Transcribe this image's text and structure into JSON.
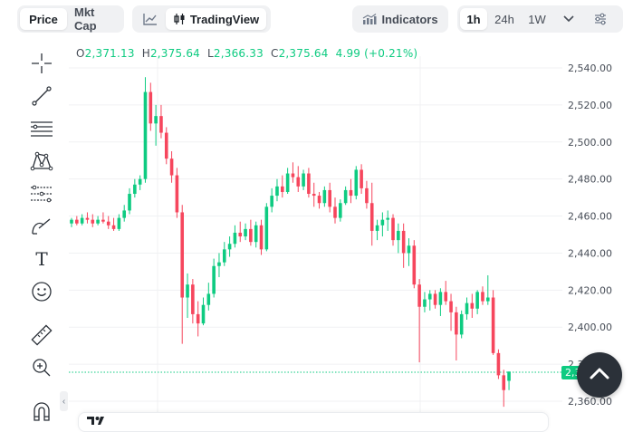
{
  "toolbar": {
    "price_tab": "Price",
    "mktcap_tab": "Mkt Cap",
    "tradingview_label": "TradingView",
    "indicators_label": "Indicators",
    "intervals": [
      "1h",
      "24h",
      "1W"
    ],
    "active_interval": "1h"
  },
  "ohlc": {
    "o_label": "O",
    "o_value": "2,371.13",
    "h_label": "H",
    "h_value": "2,375.64",
    "l_label": "L",
    "l_value": "2,366.33",
    "c_label": "C",
    "c_value": "2,375.64",
    "change": "4.99 (+0.21%)"
  },
  "tools": [
    "crosshair-icon",
    "trendline-icon",
    "horizontal-lines-icon",
    "pattern-icon",
    "fib-icon",
    "brush-icon",
    "text-icon",
    "emoji-icon",
    "ruler-icon",
    "zoom-icon",
    "magnet-icon"
  ],
  "text_tool_glyph": "T",
  "colors": {
    "up": "#0ecb81",
    "down": "#f6465d",
    "grid": "#f0f1f3",
    "axis_text": "#474d57",
    "accent_dark": "#2b3139"
  },
  "current_price_tag": "2,375.64",
  "chart_data": {
    "type": "candlestick",
    "y_ticks": [
      "2,540.00",
      "2,520.00",
      "2,500.00",
      "2,480.00",
      "2,460.00",
      "2,440.00",
      "2,420.00",
      "2,400.00",
      "2,380.00",
      "2,360.00"
    ],
    "ylim": [
      2357,
      2542
    ],
    "current_price": 2375.64,
    "ohlc": [
      [
        2456,
        2459,
        2454,
        2458
      ],
      [
        2458,
        2460,
        2455,
        2456
      ],
      [
        2456,
        2461,
        2455,
        2459
      ],
      [
        2459,
        2462,
        2456,
        2458
      ],
      [
        2458,
        2461,
        2454,
        2456
      ],
      [
        2456,
        2460,
        2455,
        2458
      ],
      [
        2458,
        2462,
        2456,
        2457
      ],
      [
        2457,
        2460,
        2453,
        2455
      ],
      [
        2455,
        2459,
        2452,
        2453
      ],
      [
        2453,
        2461,
        2452,
        2459
      ],
      [
        2459,
        2466,
        2457,
        2463
      ],
      [
        2463,
        2475,
        2461,
        2472
      ],
      [
        2472,
        2480,
        2470,
        2477
      ],
      [
        2477,
        2482,
        2474,
        2480
      ],
      [
        2480,
        2535,
        2478,
        2527
      ],
      [
        2527,
        2532,
        2506,
        2510
      ],
      [
        2510,
        2520,
        2498,
        2514
      ],
      [
        2514,
        2520,
        2502,
        2505
      ],
      [
        2505,
        2508,
        2488,
        2491
      ],
      [
        2491,
        2495,
        2478,
        2482
      ],
      [
        2482,
        2486,
        2459,
        2462
      ],
      [
        2462,
        2466,
        2391,
        2416
      ],
      [
        2416,
        2429,
        2405,
        2423
      ],
      [
        2423,
        2426,
        2402,
        2407
      ],
      [
        2407,
        2414,
        2395,
        2402
      ],
      [
        2402,
        2416,
        2401,
        2412
      ],
      [
        2412,
        2424,
        2409,
        2418
      ],
      [
        2418,
        2437,
        2416,
        2433
      ],
      [
        2433,
        2440,
        2427,
        2435
      ],
      [
        2435,
        2446,
        2433,
        2442
      ],
      [
        2442,
        2449,
        2438,
        2445
      ],
      [
        2445,
        2455,
        2443,
        2451
      ],
      [
        2451,
        2457,
        2446,
        2449
      ],
      [
        2449,
        2456,
        2447,
        2453
      ],
      [
        2453,
        2458,
        2444,
        2446
      ],
      [
        2446,
        2457,
        2443,
        2455
      ],
      [
        2455,
        2458,
        2439,
        2442
      ],
      [
        2442,
        2467,
        2441,
        2465
      ],
      [
        2465,
        2475,
        2462,
        2471
      ],
      [
        2471,
        2480,
        2468,
        2476
      ],
      [
        2476,
        2482,
        2470,
        2473
      ],
      [
        2473,
        2486,
        2472,
        2483
      ],
      [
        2483,
        2489,
        2478,
        2481
      ],
      [
        2481,
        2487,
        2473,
        2476
      ],
      [
        2476,
        2485,
        2474,
        2483
      ],
      [
        2483,
        2486,
        2470,
        2472
      ],
      [
        2472,
        2478,
        2465,
        2471
      ],
      [
        2471,
        2473,
        2464,
        2467
      ],
      [
        2467,
        2476,
        2465,
        2474
      ],
      [
        2474,
        2478,
        2462,
        2465
      ],
      [
        2465,
        2470,
        2456,
        2459
      ],
      [
        2459,
        2469,
        2457,
        2467
      ],
      [
        2467,
        2476,
        2466,
        2474
      ],
      [
        2474,
        2480,
        2467,
        2471
      ],
      [
        2471,
        2487,
        2469,
        2485
      ],
      [
        2485,
        2488,
        2472,
        2475
      ],
      [
        2475,
        2479,
        2464,
        2467
      ],
      [
        2467,
        2478,
        2444,
        2452
      ],
      [
        2452,
        2458,
        2447,
        2455
      ],
      [
        2455,
        2462,
        2449,
        2458
      ],
      [
        2458,
        2463,
        2452,
        2459
      ],
      [
        2459,
        2461,
        2444,
        2447
      ],
      [
        2447,
        2456,
        2440,
        2452
      ],
      [
        2452,
        2456,
        2432,
        2440
      ],
      [
        2440,
        2448,
        2433,
        2444
      ],
      [
        2444,
        2447,
        2421,
        2423
      ],
      [
        2423,
        2426,
        2381,
        2411
      ],
      [
        2411,
        2419,
        2408,
        2415
      ],
      [
        2415,
        2420,
        2409,
        2418
      ],
      [
        2418,
        2420,
        2410,
        2412
      ],
      [
        2412,
        2421,
        2406,
        2419
      ],
      [
        2419,
        2425,
        2412,
        2414
      ],
      [
        2414,
        2418,
        2398,
        2408
      ],
      [
        2408,
        2411,
        2382,
        2396
      ],
      [
        2396,
        2409,
        2394,
        2407
      ],
      [
        2407,
        2416,
        2404,
        2413
      ],
      [
        2413,
        2418,
        2405,
        2410
      ],
      [
        2410,
        2420,
        2407,
        2419
      ],
      [
        2419,
        2422,
        2412,
        2414
      ],
      [
        2414,
        2428,
        2412,
        2416
      ],
      [
        2416,
        2420,
        2385,
        2386
      ],
      [
        2386,
        2388,
        2372,
        2374
      ],
      [
        2374,
        2377,
        2357,
        2366
      ],
      [
        2371,
        2376,
        2366,
        2376
      ]
    ]
  }
}
